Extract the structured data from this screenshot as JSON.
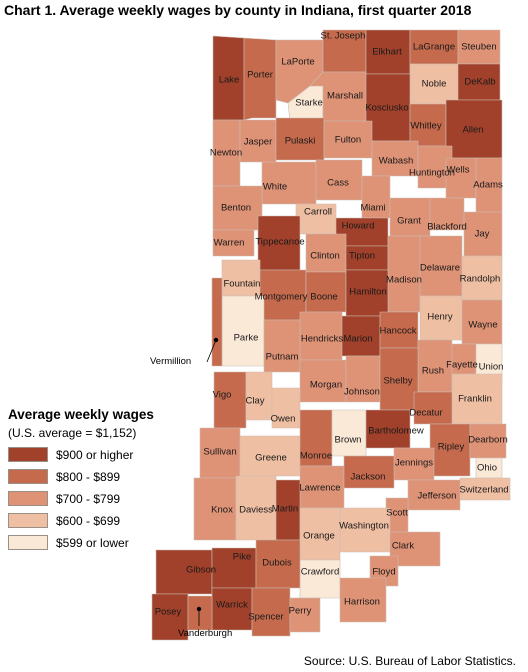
{
  "title": "Chart 1. Average weekly wages by county in Indiana, first quarter 2018",
  "legend": {
    "title": "Average weekly wages",
    "subtitle": "(U.S. average = $1,152)",
    "items": [
      {
        "label": "$900 or higher",
        "color": "#a1412b"
      },
      {
        "label": "$800 - $899",
        "color": "#c56a4d"
      },
      {
        "label": "$700 - $799",
        "color": "#de9276"
      },
      {
        "label": "$600 - $699",
        "color": "#efbfa3"
      },
      {
        "label": "$599 or lower",
        "color": "#fbe9d8"
      }
    ]
  },
  "source": "Source: U.S. Bureau of Labor Statistics.",
  "callouts": {
    "vermillion": "Vermillion",
    "vanderburgh": "Vanderburgh"
  },
  "counties": [
    {
      "name": "Lake",
      "cls": 0
    },
    {
      "name": "Porter",
      "cls": 1
    },
    {
      "name": "LaPorte",
      "cls": 2
    },
    {
      "name": "St. Joseph",
      "cls": 1
    },
    {
      "name": "Elkhart",
      "cls": 0
    },
    {
      "name": "LaGrange",
      "cls": 1
    },
    {
      "name": "Steuben",
      "cls": 2
    },
    {
      "name": "Noble",
      "cls": 3
    },
    {
      "name": "DeKalb",
      "cls": 0
    },
    {
      "name": "Starke",
      "cls": 4
    },
    {
      "name": "Marshall",
      "cls": 2
    },
    {
      "name": "Kosciusko",
      "cls": 0
    },
    {
      "name": "Whitley",
      "cls": 1
    },
    {
      "name": "Allen",
      "cls": 0
    },
    {
      "name": "Newton",
      "cls": 2
    },
    {
      "name": "Jasper",
      "cls": 2
    },
    {
      "name": "Pulaski",
      "cls": 1
    },
    {
      "name": "Fulton",
      "cls": 2
    },
    {
      "name": "Wabash",
      "cls": 2
    },
    {
      "name": "Huntington",
      "cls": 2
    },
    {
      "name": "White",
      "cls": 2
    },
    {
      "name": "Cass",
      "cls": 2
    },
    {
      "name": "Miami",
      "cls": 2
    },
    {
      "name": "Wells",
      "cls": 2
    },
    {
      "name": "Adams",
      "cls": 2
    },
    {
      "name": "Benton",
      "cls": 2
    },
    {
      "name": "Carroll",
      "cls": 3
    },
    {
      "name": "Howard",
      "cls": 0
    },
    {
      "name": "Grant",
      "cls": 2
    },
    {
      "name": "Blackford",
      "cls": 2
    },
    {
      "name": "Jay",
      "cls": 2
    },
    {
      "name": "Warren",
      "cls": 2
    },
    {
      "name": "Tippecanoe",
      "cls": 0
    },
    {
      "name": "Clinton",
      "cls": 2
    },
    {
      "name": "Tipton",
      "cls": 0
    },
    {
      "name": "Madison",
      "cls": 2
    },
    {
      "name": "Delaware",
      "cls": 2
    },
    {
      "name": "Randolph",
      "cls": 3
    },
    {
      "name": "Fountain",
      "cls": 3
    },
    {
      "name": "Montgomery",
      "cls": 1
    },
    {
      "name": "Boone",
      "cls": 1
    },
    {
      "name": "Hamilton",
      "cls": 0
    },
    {
      "name": "Henry",
      "cls": 3
    },
    {
      "name": "Wayne",
      "cls": 2
    },
    {
      "name": "Parke",
      "cls": 4
    },
    {
      "name": "Hendricks",
      "cls": 2
    },
    {
      "name": "Marion",
      "cls": 0
    },
    {
      "name": "Hancock",
      "cls": 1
    },
    {
      "name": "Putnam",
      "cls": 2
    },
    {
      "name": "Rush",
      "cls": 2
    },
    {
      "name": "Fayette",
      "cls": 2
    },
    {
      "name": "Union",
      "cls": 4
    },
    {
      "name": "Vigo",
      "cls": 1
    },
    {
      "name": "Clay",
      "cls": 3
    },
    {
      "name": "Morgan",
      "cls": 2
    },
    {
      "name": "Johnson",
      "cls": 2
    },
    {
      "name": "Shelby",
      "cls": 1
    },
    {
      "name": "Franklin",
      "cls": 3
    },
    {
      "name": "Owen",
      "cls": 3
    },
    {
      "name": "Decatur",
      "cls": 1
    },
    {
      "name": "Sullivan",
      "cls": 2
    },
    {
      "name": "Greene",
      "cls": 3
    },
    {
      "name": "Monroe",
      "cls": 1
    },
    {
      "name": "Brown",
      "cls": 4
    },
    {
      "name": "Bartholomew",
      "cls": 0
    },
    {
      "name": "Ripley",
      "cls": 1
    },
    {
      "name": "Dearborn",
      "cls": 2
    },
    {
      "name": "Jennings",
      "cls": 2
    },
    {
      "name": "Ohio",
      "cls": 4
    },
    {
      "name": "Lawrence",
      "cls": 2
    },
    {
      "name": "Jackson",
      "cls": 1
    },
    {
      "name": "Switzerland",
      "cls": 3
    },
    {
      "name": "Jefferson",
      "cls": 2
    },
    {
      "name": "Knox",
      "cls": 2
    },
    {
      "name": "Daviess",
      "cls": 3
    },
    {
      "name": "Martin",
      "cls": 0
    },
    {
      "name": "Scott",
      "cls": 2
    },
    {
      "name": "Washington",
      "cls": 3
    },
    {
      "name": "Orange",
      "cls": 3
    },
    {
      "name": "Clark",
      "cls": 2
    },
    {
      "name": "Floyd",
      "cls": 2
    },
    {
      "name": "Crawford",
      "cls": 4
    },
    {
      "name": "Gibson",
      "cls": 0
    },
    {
      "name": "Pike",
      "cls": 0
    },
    {
      "name": "Dubois",
      "cls": 1
    },
    {
      "name": "Harrison",
      "cls": 2
    },
    {
      "name": "Posey",
      "cls": 0
    },
    {
      "name": "Warrick",
      "cls": 0
    },
    {
      "name": "Spencer",
      "cls": 1
    },
    {
      "name": "Perry",
      "cls": 2
    },
    {
      "name": "Vermillion",
      "cls": 1
    },
    {
      "name": "Vanderburgh",
      "cls": 1
    }
  ]
}
